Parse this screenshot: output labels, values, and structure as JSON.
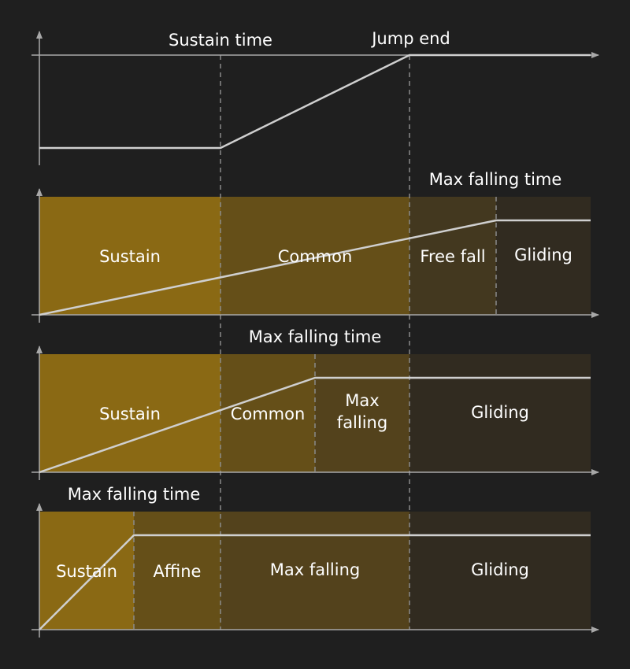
{
  "colors": {
    "background": "#1f1f1f",
    "axis": "#a8a8a8",
    "curve": "#cfcfcf",
    "guide": "#8a8a8a",
    "text": "#ffffff",
    "sustain": "#8a6914",
    "common": "#654f18",
    "affine": "#654f18",
    "max_falling": "#53421c",
    "free_fall": "#43381f",
    "gliding": "#312b20"
  },
  "top_panel": {
    "sustain_time_label": "Sustain time",
    "jump_end_label": "Jump end"
  },
  "panel_1": {
    "top_label": "Max falling time",
    "regions": [
      "Sustain",
      "Common",
      "Free fall",
      "Gliding"
    ]
  },
  "panel_2": {
    "top_label": "Max falling time",
    "regions": [
      "Sustain",
      "Common",
      "Max",
      "falling",
      "Gliding"
    ]
  },
  "panel_3": {
    "top_label": "Max falling time",
    "regions": [
      "Sustain",
      "Affine",
      "Max falling",
      "Gliding"
    ]
  }
}
